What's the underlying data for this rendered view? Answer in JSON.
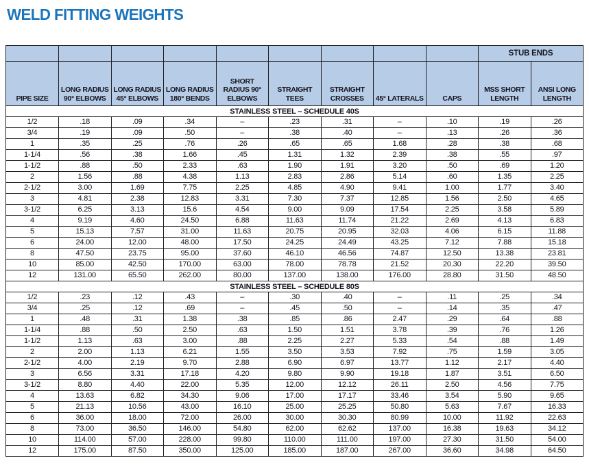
{
  "page_title": "WELD FITTING WEIGHTS",
  "colors": {
    "title_blue": "#1b75bc",
    "header_bg": "#b7cce6",
    "border": "#1d1d1d",
    "text_dark": "#15141f"
  },
  "table": {
    "group_header": "STUB ENDS",
    "empty_cell_marker": "–",
    "columns": [
      "PIPE SIZE",
      "LONG RADIUS 90° ELBOWS",
      "LONG RADIUS 45° ELBOWS",
      "LONG RADIUS 180° BENDS",
      "SHORT RADIUS 90° ELBOWS",
      "STRAIGHT TEES",
      "STRAIGHT CROSSES",
      "45° LATERALS",
      "CAPS",
      "MSS SHORT LENGTH",
      "ANSI  LONG LENGTH"
    ],
    "sections": [
      {
        "label": "STAINLESS STEEL – SCHEDULE 40S",
        "rows": [
          [
            "1/2",
            ".18",
            ".09",
            ".34",
            "–",
            ".23",
            ".31",
            "–",
            ".10",
            ".19",
            ".26"
          ],
          [
            "3/4",
            ".19",
            ".09",
            ".50",
            "–",
            ".38",
            ".40",
            "–",
            ".13",
            ".26",
            ".36"
          ],
          [
            "1",
            ".35",
            ".25",
            ".76",
            ".26",
            ".65",
            ".65",
            "1.68",
            ".28",
            ".38",
            ".68"
          ],
          [
            "1-1/4",
            ".56",
            ".38",
            "1.66",
            ".45",
            "1.31",
            "1.32",
            "2.39",
            ".38",
            ".55",
            ".97"
          ],
          [
            "1-1/2",
            ".88",
            ".50",
            "2.33",
            ".63",
            "1.90",
            "1.91",
            "3.20",
            ".50",
            ".69",
            "1.20"
          ],
          [
            "2",
            "1.56",
            ".88",
            "4.38",
            "1.13",
            "2.83",
            "2.86",
            "5.14",
            ".60",
            "1.35",
            "2.25"
          ],
          [
            "2-1/2",
            "3.00",
            "1.69",
            "7.75",
            "2.25",
            "4.85",
            "4.90",
            "9.41",
            "1.00",
            "1.77",
            "3.40"
          ],
          [
            "3",
            "4.81",
            "2.38",
            "12.83",
            "3.31",
            "7.30",
            "7.37",
            "12.85",
            "1.56",
            "2.50",
            "4.65"
          ],
          [
            "3-1/2",
            "6.25",
            "3.13",
            "15.6",
            "4.54",
            "9.00",
            "9.09",
            "17.54",
            "2.25",
            "3.58",
            "5.89"
          ],
          [
            "4",
            "9.19",
            "4.60",
            "24.50",
            "6.88",
            "11.63",
            "11.74",
            "21.22",
            "2.69",
            "4.13",
            "6.83"
          ],
          [
            "5",
            "15.13",
            "7.57",
            "31.00",
            "11.63",
            "20.75",
            "20.95",
            "32.03",
            "4.06",
            "6.15",
            "11.88"
          ],
          [
            "6",
            "24.00",
            "12.00",
            "48.00",
            "17.50",
            "24.25",
            "24.49",
            "43.25",
            "7.12",
            "7.88",
            "15.18"
          ],
          [
            "8",
            "47.50",
            "23.75",
            "95.00",
            "37.60",
            "46.10",
            "46.56",
            "74.87",
            "12.50",
            "13.38",
            "23.81"
          ],
          [
            "10",
            "85.00",
            "42.50",
            "170.00",
            "63.00",
            "78.00",
            "78.78",
            "21.52",
            "20.30",
            "22.20",
            "39.50"
          ],
          [
            "12",
            "131.00",
            "65.50",
            "262.00",
            "80.00",
            "137.00",
            "138.00",
            "176.00",
            "28.80",
            "31.50",
            "48.50"
          ]
        ]
      },
      {
        "label": "STAINLESS STEEL – SCHEDULE 80S",
        "rows": [
          [
            "1/2",
            ".23",
            ".12",
            ".43",
            "–",
            ".30",
            ".40",
            "–",
            ".11",
            ".25",
            ".34"
          ],
          [
            "3/4",
            ".25",
            ".12",
            ".69",
            "–",
            ".45",
            ".50",
            "–",
            ".14",
            ".35",
            ".47"
          ],
          [
            "1",
            ".48",
            ".31",
            "1.38",
            ".38",
            ".85",
            ".86",
            "2.47",
            ".29",
            ".64",
            ".88"
          ],
          [
            "1-1/4",
            ".88",
            ".50",
            "2.50",
            ".63",
            "1.50",
            "1.51",
            "3.78",
            ".39",
            ".76",
            "1.26"
          ],
          [
            "1-1/2",
            "1.13",
            ".63",
            "3.00",
            ".88",
            "2.25",
            "2.27",
            "5.33",
            ".54",
            ".88",
            "1.49"
          ],
          [
            "2",
            "2.00",
            "1.13",
            "6.21",
            "1.55",
            "3.50",
            "3.53",
            "7.92",
            ".75",
            "1.59",
            "3.05"
          ],
          [
            "2-1/2",
            "4.00",
            "2.19",
            "9.70",
            "2.88",
            "6.90",
            "6.97",
            "13.77",
            "1.12",
            "2.17",
            "4.40"
          ],
          [
            "3",
            "6.56",
            "3.31",
            "17.18",
            "4.20",
            "9.80",
            "9.90",
            "19.18",
            "1.87",
            "3.51",
            "6.50"
          ],
          [
            "3-1/2",
            "8.80",
            "4.40",
            "22.00",
            "5.35",
            "12.00",
            "12.12",
            "26.11",
            "2.50",
            "4.56",
            "7.75"
          ],
          [
            "4",
            "13.63",
            "6.82",
            "34.30",
            "9.06",
            "17.00",
            "17.17",
            "33.46",
            "3.54",
            "5.90",
            "9.65"
          ],
          [
            "5",
            "21.13",
            "10.56",
            "43.00",
            "16.10",
            "25.00",
            "25.25",
            "50.80",
            "5.63",
            "7.67",
            "16.33"
          ],
          [
            "6",
            "36.00",
            "18.00",
            "72.00",
            "26.00",
            "30.00",
            "30.30",
            "80.99",
            "10.00",
            "11.92",
            "22.63"
          ],
          [
            "8",
            "73.00",
            "36.50",
            "146.00",
            "54.80",
            "62.00",
            "62.62",
            "137.00",
            "16.38",
            "19.63",
            "34.12"
          ],
          [
            "10",
            "114.00",
            "57.00",
            "228.00",
            "99.80",
            "110.00",
            "111.00",
            "197.00",
            "27.30",
            "31.50",
            "54.00"
          ],
          [
            "12",
            "175.00",
            "87.50",
            "350.00",
            "125.00",
            "185.00",
            "187.00",
            "267.00",
            "36.60",
            "34.98",
            "64.50"
          ]
        ]
      }
    ]
  }
}
